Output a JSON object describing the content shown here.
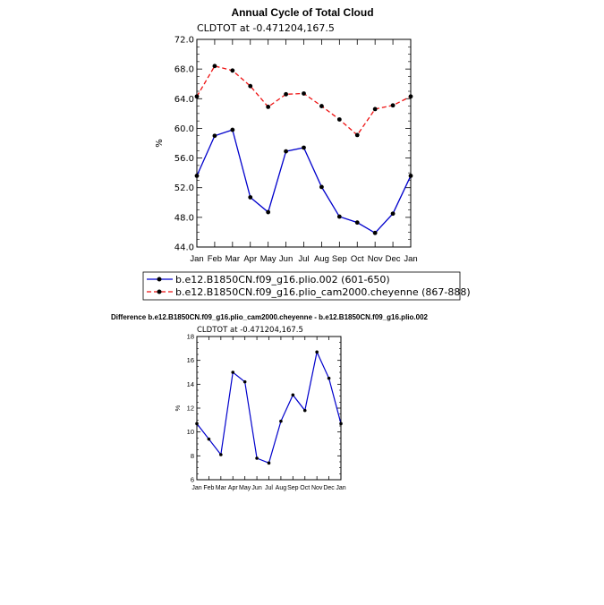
{
  "chart_data": [
    {
      "type": "line",
      "title": "Annual Cycle of Total Cloud",
      "subtitle": "CLDTOT at -0.471204,167.5",
      "xlabel": "",
      "ylabel": "%",
      "categories": [
        "Jan",
        "Feb",
        "Mar",
        "Apr",
        "May",
        "Jun",
        "Jul",
        "Aug",
        "Sep",
        "Oct",
        "Nov",
        "Dec",
        "Jan"
      ],
      "ylim": [
        44,
        72
      ],
      "yticks": [
        "44.0",
        "48.0",
        "52.0",
        "56.0",
        "60.0",
        "64.0",
        "68.0",
        "72.0"
      ],
      "legend_position": "bottom",
      "series": [
        {
          "name": "b.e12.B1850CN.f09_g16.plio.002 (601-650)",
          "color": "#0000cc",
          "dash": "solid",
          "values": [
            53.6,
            59.0,
            59.8,
            50.7,
            48.7,
            56.9,
            57.4,
            52.1,
            48.1,
            47.3,
            45.9,
            48.5,
            53.6
          ]
        },
        {
          "name": "b.e12.B1850CN.f09_g16.plio_cam2000.cheyenne (867-888)",
          "color": "#ee1111",
          "dash": "dashed",
          "values": [
            64.3,
            68.4,
            67.8,
            65.7,
            62.9,
            64.6,
            64.7,
            63.0,
            61.2,
            59.1,
            62.6,
            63.1,
            64.3
          ]
        }
      ]
    },
    {
      "type": "line",
      "title": "Difference b.e12.B1850CN.f09_g16.plio_cam2000.cheyenne - b.e12.B1850CN.f09_g16.plio.002",
      "subtitle": "CLDTOT at -0.471204,167.5",
      "xlabel": "",
      "ylabel": "%",
      "categories": [
        "Jan",
        "Feb",
        "Mar",
        "Apr",
        "May",
        "Jun",
        "Jul",
        "Aug",
        "Sep",
        "Oct",
        "Nov",
        "Dec",
        "Jan"
      ],
      "ylim": [
        6,
        18
      ],
      "yticks": [
        "6",
        "8",
        "10",
        "12",
        "14",
        "16",
        "18"
      ],
      "series": [
        {
          "name": "Difference",
          "color": "#0000cc",
          "dash": "solid",
          "values": [
            10.7,
            9.4,
            8.1,
            15.0,
            14.2,
            7.8,
            7.4,
            10.9,
            13.1,
            11.8,
            16.7,
            14.5,
            10.7
          ]
        }
      ]
    }
  ]
}
